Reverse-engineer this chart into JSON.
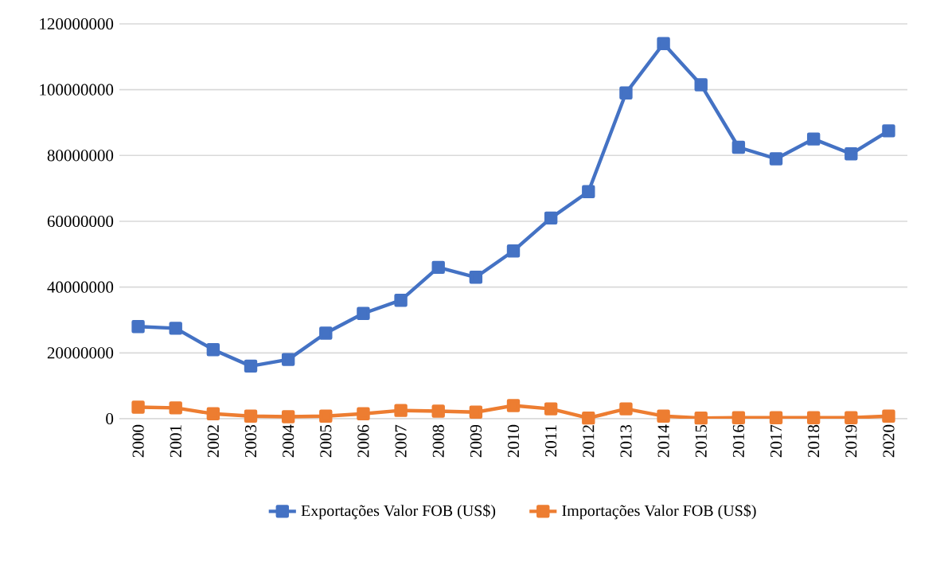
{
  "chart_data": {
    "type": "line",
    "categories": [
      "2000",
      "2001",
      "2002",
      "2003",
      "2004",
      "2005",
      "2006",
      "2007",
      "2008",
      "2009",
      "2010",
      "2011",
      "2012",
      "2013",
      "2014",
      "2015",
      "2016",
      "2017",
      "2018",
      "2019",
      "2020"
    ],
    "series": [
      {
        "name": "Exportações Valor FOB (US$)",
        "color": "#4472c4",
        "values": [
          28000000,
          27500000,
          21000000,
          16000000,
          18000000,
          26000000,
          32000000,
          36000000,
          46000000,
          43000000,
          51000000,
          61000000,
          69000000,
          99000000,
          114000000,
          101500000,
          82500000,
          79000000,
          85000000,
          80500000,
          87500000
        ]
      },
      {
        "name": "Importações Valor FOB (US$)",
        "color": "#ed7d31",
        "values": [
          3500000,
          3300000,
          1500000,
          800000,
          600000,
          800000,
          1500000,
          2500000,
          2300000,
          2000000,
          4000000,
          3000000,
          200000,
          3000000,
          800000,
          200000,
          300000,
          300000,
          300000,
          300000,
          800000
        ]
      }
    ],
    "ylim": [
      0,
      120000000
    ],
    "yticks": [
      0,
      20000000,
      40000000,
      60000000,
      80000000,
      100000000,
      120000000
    ],
    "grid": "y",
    "legend": "bottom",
    "marker": "square",
    "line_style": "solid"
  }
}
